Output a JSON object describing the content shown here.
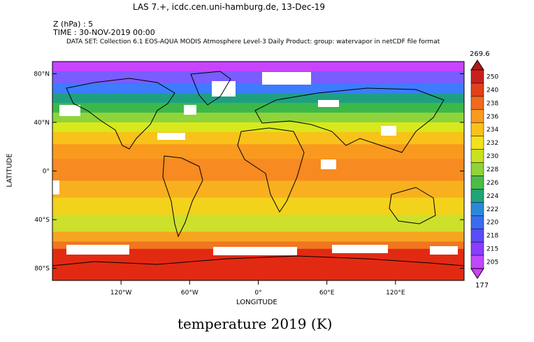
{
  "header": {
    "title_line": "LAS 7.+, icdc.cen.uni-hamburg.de, 13-Dec-19",
    "z_label": "Z (hPa) : 5",
    "time_label": "TIME : 30-NOV-2019 00:00",
    "dataset_label": "DATA SET: Collection 6.1 EOS-AQUA MODIS Atmosphere Level-3 Daily Product: group: watervapor in netCDF file format"
  },
  "map": {
    "y_axis_title": "LATITUDE",
    "x_axis_title": "LONGITUDE",
    "lat_ticks": [
      {
        "label": "80°N",
        "lat": 80
      },
      {
        "label": "40°N",
        "lat": 40
      },
      {
        "label": "0°",
        "lat": 0
      },
      {
        "label": "40°S",
        "lat": -40
      },
      {
        "label": "80°S",
        "lat": -80
      }
    ],
    "lon_ticks": [
      {
        "label": "120°W",
        "lon": -120
      },
      {
        "label": "60°W",
        "lon": -60
      },
      {
        "label": "0°",
        "lon": 0
      },
      {
        "label": "60°E",
        "lon": 60
      },
      {
        "label": "120°E",
        "lon": 120
      }
    ],
    "lon_range": [
      -180,
      180
    ],
    "lat_range": [
      -90,
      90
    ],
    "bands": [
      {
        "lat_top": 90,
        "lat_bottom": 82,
        "color": "#c845ff"
      },
      {
        "lat_top": 82,
        "lat_bottom": 72,
        "color": "#7a5cff"
      },
      {
        "lat_top": 72,
        "lat_bottom": 64,
        "color": "#3d7bff"
      },
      {
        "lat_top": 64,
        "lat_bottom": 56,
        "color": "#1ea080"
      },
      {
        "lat_top": 56,
        "lat_bottom": 48,
        "color": "#3cb84a"
      },
      {
        "lat_top": 48,
        "lat_bottom": 40,
        "color": "#8fd43a"
      },
      {
        "lat_top": 40,
        "lat_bottom": 32,
        "color": "#d8e81c"
      },
      {
        "lat_top": 32,
        "lat_bottom": 22,
        "color": "#f8c21a"
      },
      {
        "lat_top": 22,
        "lat_bottom": 10,
        "color": "#f99a1e"
      },
      {
        "lat_top": 10,
        "lat_bottom": -8,
        "color": "#f78a20"
      },
      {
        "lat_top": -8,
        "lat_bottom": -22,
        "color": "#f9b01e"
      },
      {
        "lat_top": -22,
        "lat_bottom": -36,
        "color": "#f3d21c"
      },
      {
        "lat_top": -36,
        "lat_bottom": -50,
        "color": "#cde02c"
      },
      {
        "lat_top": -50,
        "lat_bottom": -58,
        "color": "#f7a420"
      },
      {
        "lat_top": -58,
        "lat_bottom": -64,
        "color": "#f07622"
      },
      {
        "lat_top": -64,
        "lat_bottom": -90,
        "color": "#e22a12"
      }
    ],
    "missing_color": "#ffffff"
  },
  "colorbar": {
    "max_label": "269.6",
    "min_label": "177",
    "levels": [
      "250",
      "240",
      "238",
      "236",
      "234",
      "232",
      "230",
      "228",
      "226",
      "224",
      "222",
      "220",
      "218",
      "215",
      "205"
    ],
    "colors": [
      "#c8201e",
      "#e0401a",
      "#f06a1c",
      "#f89a1e",
      "#f8c21a",
      "#f2e21a",
      "#c8e21e",
      "#8ed23c",
      "#4cbc48",
      "#20a478",
      "#2a8ad8",
      "#3a6cf0",
      "#5a4cf8",
      "#8a3cff",
      "#c048ff"
    ],
    "top_cap_color": "#b01818",
    "bottom_cap_color": "#d040ff"
  },
  "footer": {
    "title": "temperature 2019 (K)"
  }
}
